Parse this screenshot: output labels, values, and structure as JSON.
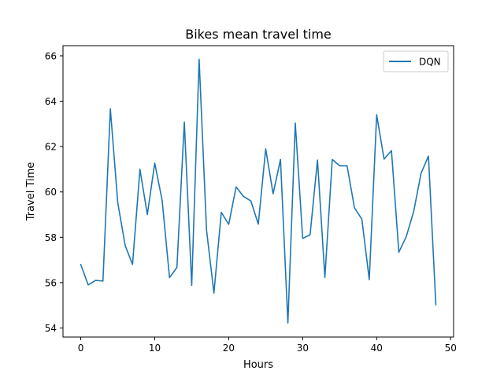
{
  "chart_data": {
    "type": "line",
    "title": "Bikes mean travel time",
    "xlabel": "Hours",
    "ylabel": "Travel Time",
    "xlim": [
      -2.4,
      50.4
    ],
    "ylim": [
      53.6,
      66.45
    ],
    "xticks": [
      0,
      10,
      20,
      30,
      40,
      50
    ],
    "yticks": [
      54,
      56,
      58,
      60,
      62,
      64,
      66
    ],
    "xtick_labels": [
      "0",
      "10",
      "20",
      "30",
      "40",
      "50"
    ],
    "ytick_labels": [
      "54",
      "56",
      "58",
      "60",
      "62",
      "64",
      "66"
    ],
    "legend_position": "top-right",
    "grid": false,
    "series": [
      {
        "name": "DQN",
        "color": "#1f77b4",
        "x": [
          0,
          1,
          2,
          3,
          4,
          5,
          6,
          7,
          8,
          9,
          10,
          11,
          12,
          13,
          14,
          15,
          16,
          17,
          18,
          19,
          20,
          21,
          22,
          23,
          24,
          25,
          26,
          27,
          28,
          29,
          30,
          31,
          32,
          33,
          34,
          35,
          36,
          37,
          38,
          39,
          40,
          41,
          42,
          43,
          44,
          45,
          46,
          47,
          48
        ],
        "y": [
          56.8,
          55.9,
          56.1,
          56.07,
          63.67,
          59.53,
          57.64,
          56.8,
          61.0,
          59.0,
          61.27,
          59.63,
          56.22,
          56.67,
          63.08,
          55.88,
          65.85,
          58.33,
          55.54,
          59.1,
          58.57,
          60.22,
          59.8,
          59.6,
          58.58,
          61.9,
          59.92,
          61.43,
          54.22,
          63.04,
          57.95,
          58.11,
          61.41,
          56.23,
          61.43,
          61.15,
          61.15,
          59.3,
          58.8,
          56.13,
          63.4,
          61.45,
          61.82,
          57.34,
          58.03,
          59.13,
          60.82,
          61.58,
          55.03
        ]
      }
    ]
  }
}
